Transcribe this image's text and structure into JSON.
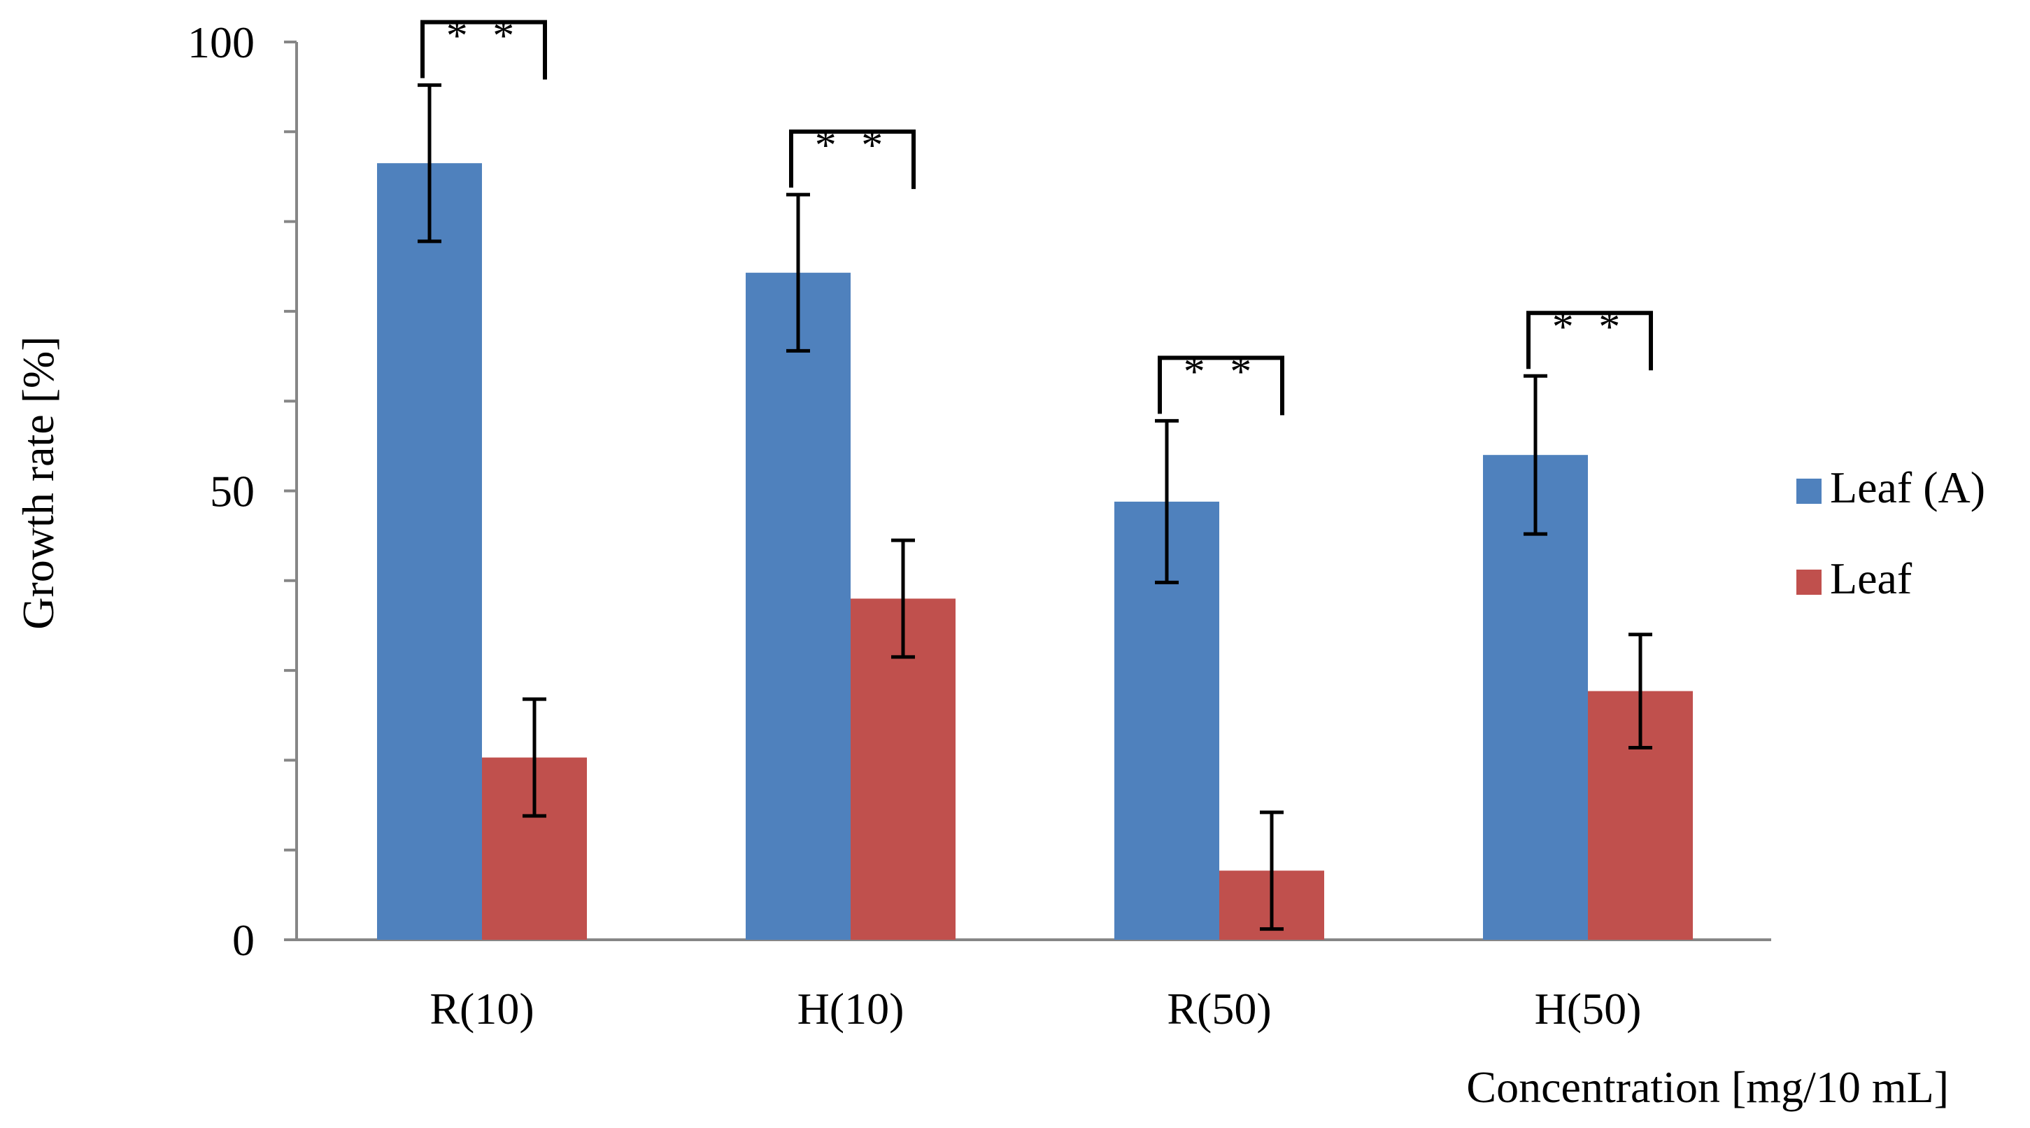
{
  "chart_data": {
    "type": "bar",
    "title": "",
    "xlabel": "Concentration [mg/10 mL]",
    "ylabel": "Growth rate  [%]",
    "ylim": [
      0,
      100
    ],
    "yticks": [
      0,
      50,
      100
    ],
    "categories": [
      "R(10)",
      "H(10)",
      "R(50)",
      "H(50)"
    ],
    "series": [
      {
        "name": "Leaf (A)",
        "color": "#4f81bd",
        "values": [
          86.5,
          74.3,
          48.8,
          54.0
        ],
        "errors": [
          8.7,
          8.7,
          9.0,
          8.8
        ]
      },
      {
        "name": "Leaf",
        "color": "#c0504d",
        "values": [
          20.3,
          38.0,
          7.7,
          27.7
        ],
        "errors": [
          6.5,
          6.5,
          6.5,
          6.3
        ]
      }
    ],
    "significance": [
      {
        "category": "R(10)",
        "label": "* *"
      },
      {
        "category": "H(10)",
        "label": "* *"
      },
      {
        "category": "R(50)",
        "label": "* *"
      },
      {
        "category": "H(50)",
        "label": "* *"
      }
    ],
    "legend_position": "right"
  }
}
